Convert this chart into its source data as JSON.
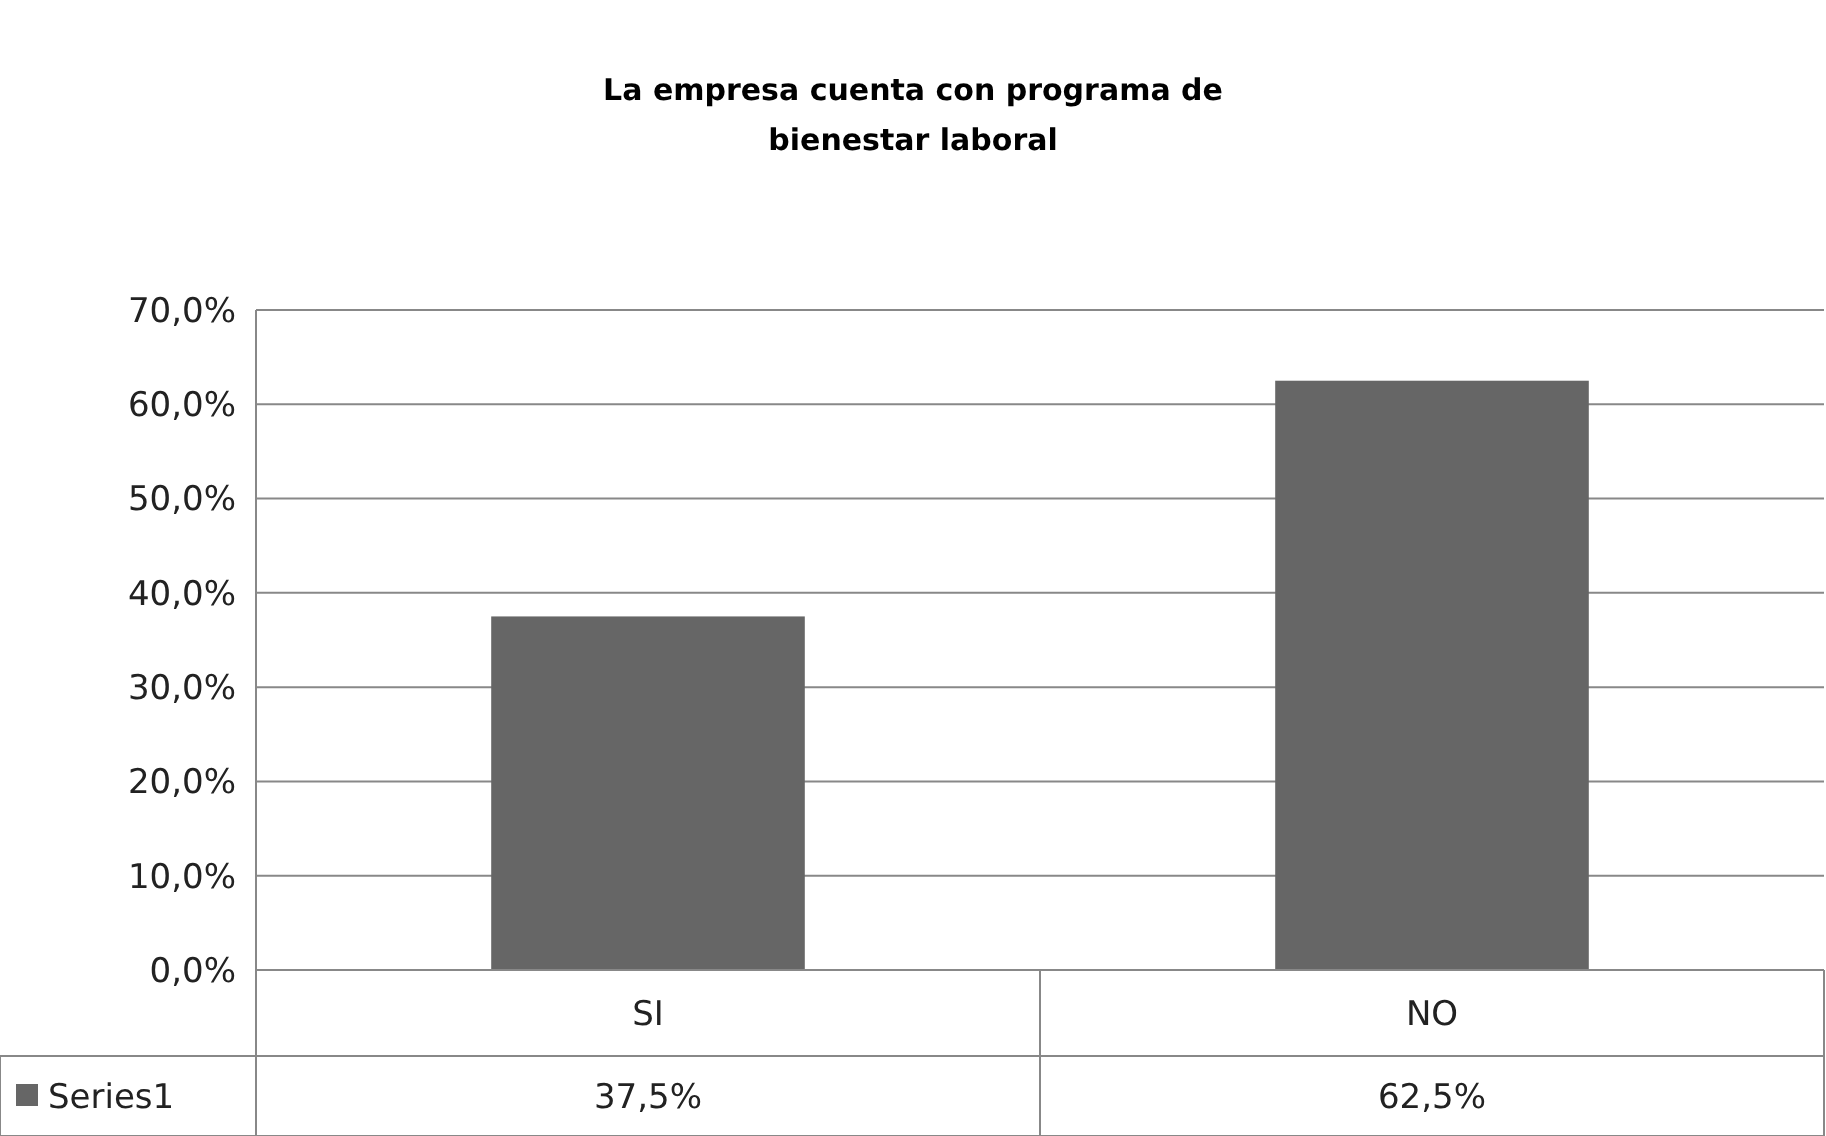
{
  "chart_data": {
    "type": "bar",
    "title": "La empresa cuenta con programa de\nbienestar laboral",
    "categories": [
      "SI",
      "NO"
    ],
    "series": [
      {
        "name": "Series1",
        "color": "#666666",
        "values": [
          37.5,
          62.5
        ],
        "value_labels": [
          "37,5%",
          "62,5%"
        ]
      }
    ],
    "ylim": [
      0,
      70
    ],
    "yticks": [
      {
        "value": 0,
        "label": "0,0%"
      },
      {
        "value": 10,
        "label": "10,0%"
      },
      {
        "value": 20,
        "label": "20,0%"
      },
      {
        "value": 30,
        "label": "30,0%"
      },
      {
        "value": 40,
        "label": "40,0%"
      },
      {
        "value": 50,
        "label": "50,0%"
      },
      {
        "value": 60,
        "label": "60,0%"
      },
      {
        "value": 70,
        "label": "70,0%"
      }
    ],
    "grid": "y",
    "legend": "bottom",
    "data_labels": true
  }
}
